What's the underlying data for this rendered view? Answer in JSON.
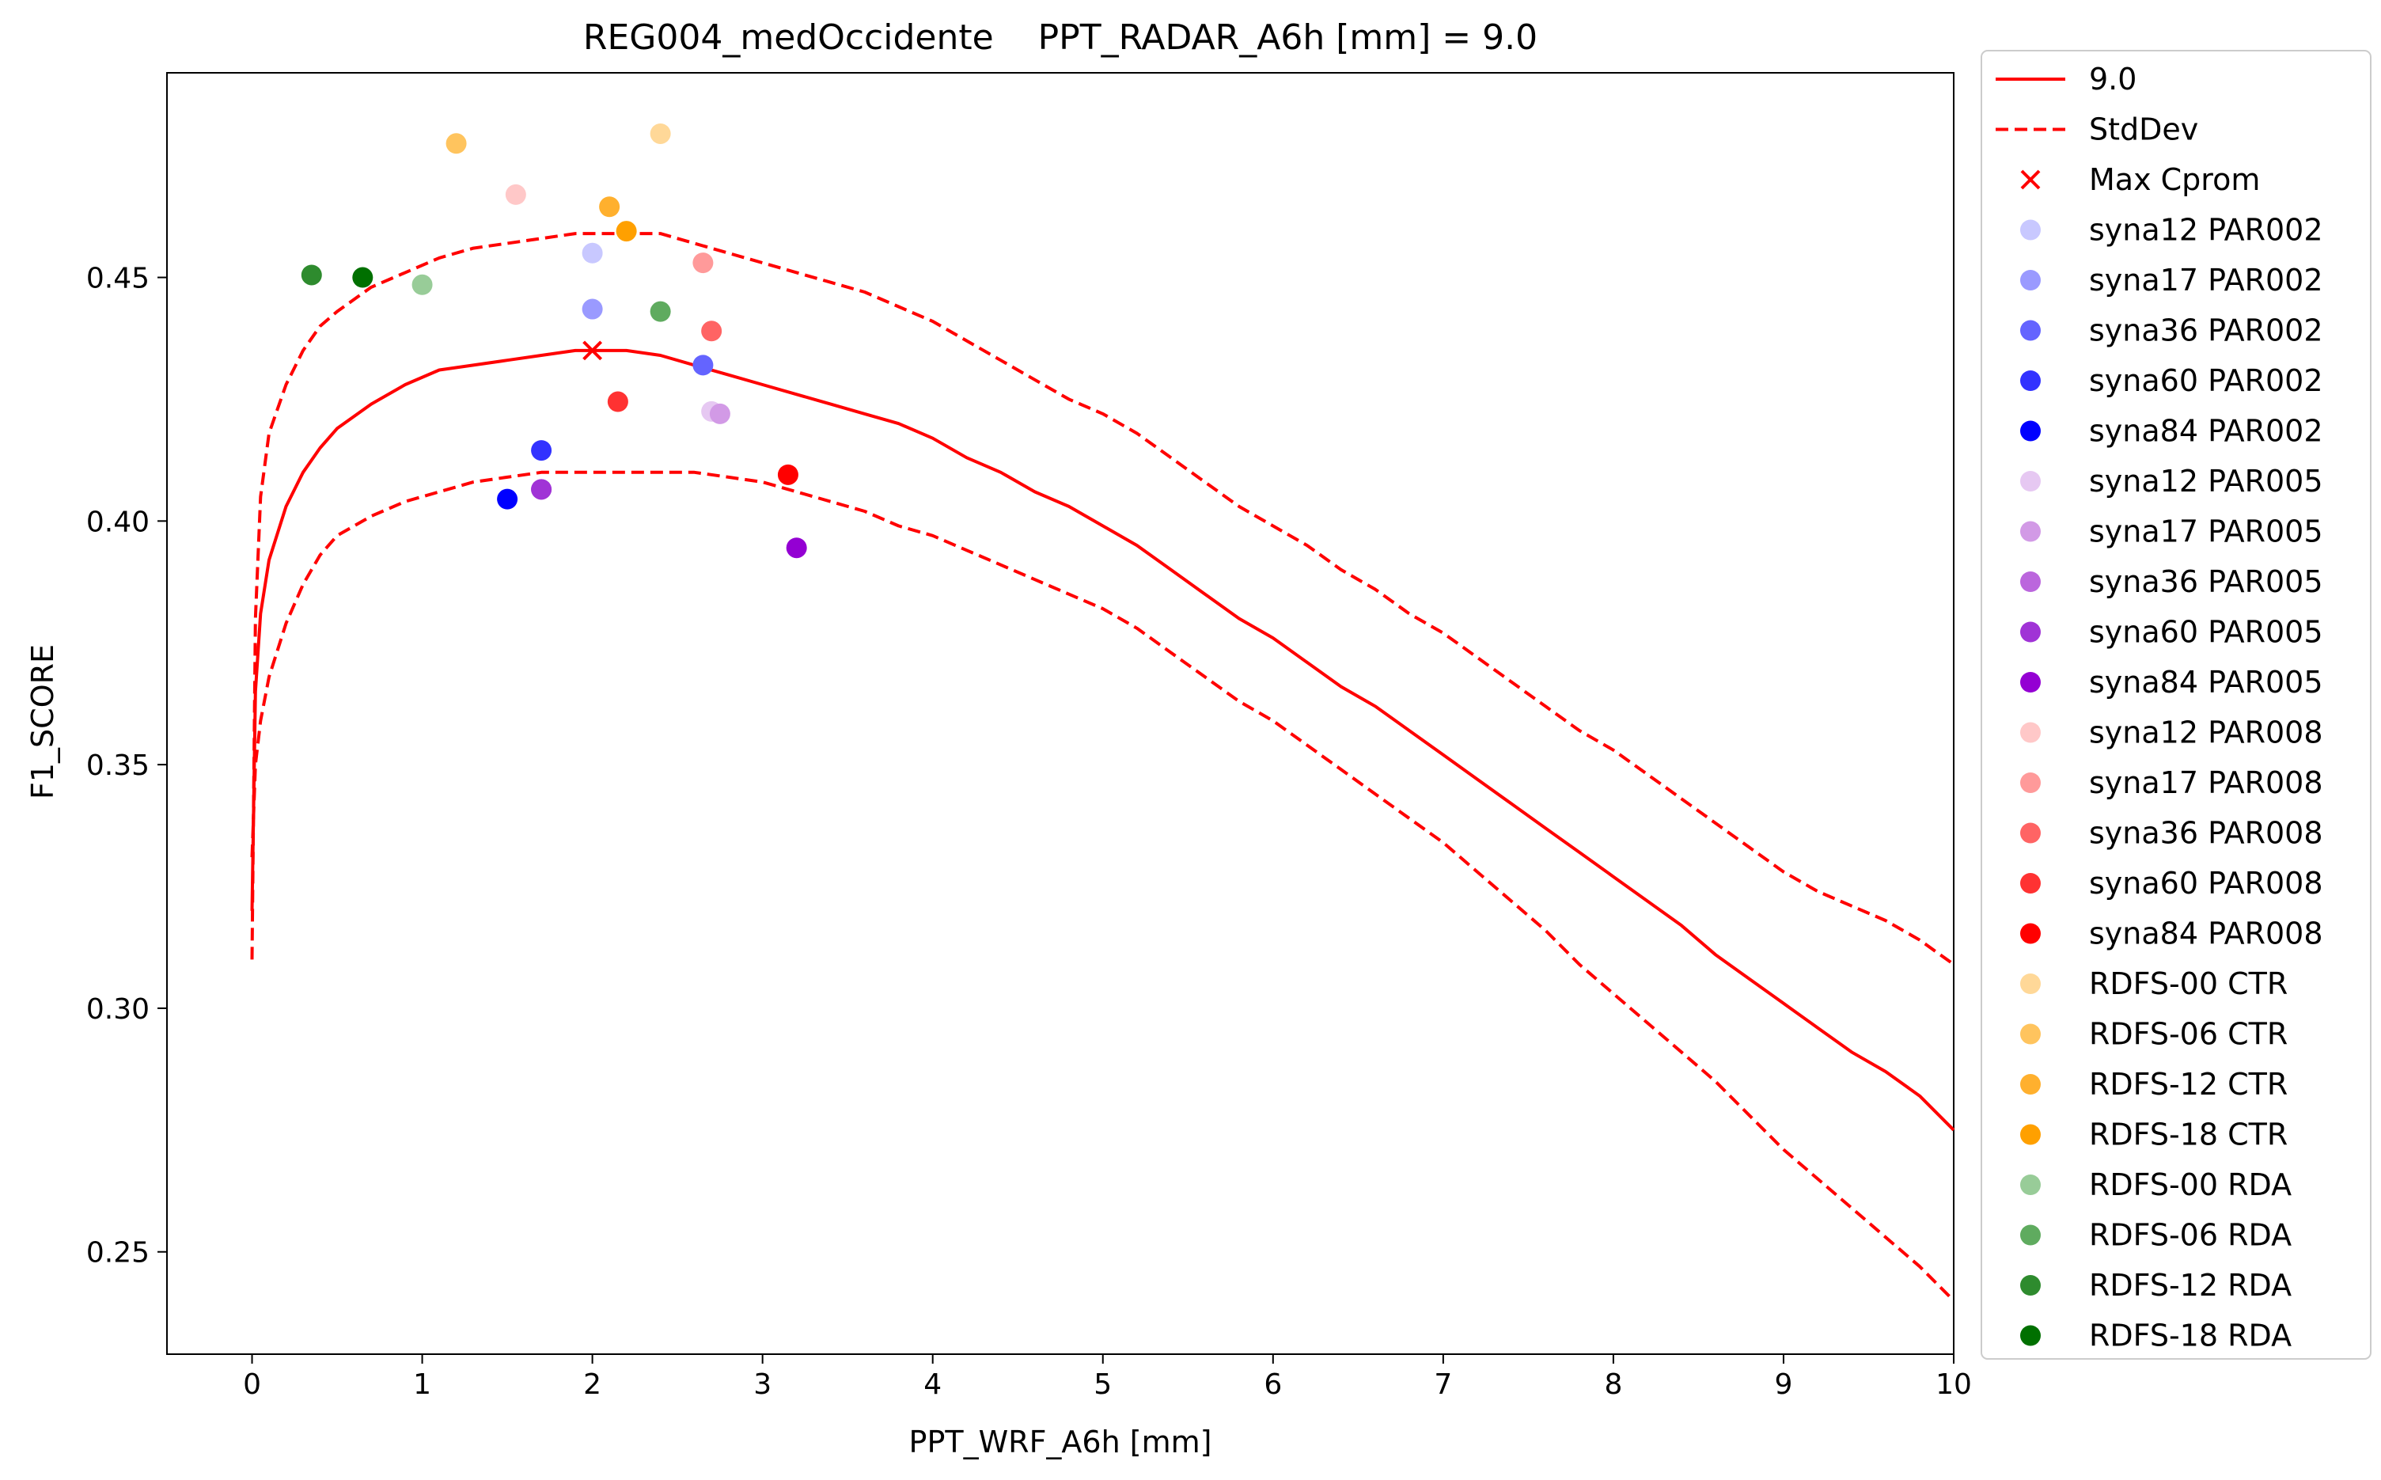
{
  "chart_data": {
    "type": "scatter",
    "title": "REG004_medOccidente    PPT_RADAR_A6h [mm] = 9.0",
    "xlabel": "PPT_WRF_A6h [mm]",
    "ylabel": "F1_SCORE",
    "xlim": [
      -0.5,
      10
    ],
    "ylim": [
      0.229,
      0.492
    ],
    "xticks": [
      0,
      1,
      2,
      3,
      4,
      5,
      6,
      7,
      8,
      9,
      10
    ],
    "yticks": [
      0.25,
      0.3,
      0.35,
      0.4,
      0.45
    ],
    "xtick_labels": [
      "0",
      "1",
      "2",
      "3",
      "4",
      "5",
      "6",
      "7",
      "8",
      "9",
      "10"
    ],
    "ytick_labels": [
      "0.25",
      "0.30",
      "0.35",
      "0.40",
      "0.45"
    ],
    "grid": false,
    "legend_position": "outside-right",
    "lines": [
      {
        "name": "9.0",
        "style": "solid",
        "color": "#ff0000",
        "points": [
          [
            0.0,
            0.32
          ],
          [
            0.02,
            0.365
          ],
          [
            0.05,
            0.381
          ],
          [
            0.1,
            0.392
          ],
          [
            0.2,
            0.403
          ],
          [
            0.3,
            0.41
          ],
          [
            0.4,
            0.415
          ],
          [
            0.5,
            0.419
          ],
          [
            0.7,
            0.424
          ],
          [
            0.9,
            0.428
          ],
          [
            1.1,
            0.431
          ],
          [
            1.3,
            0.432
          ],
          [
            1.5,
            0.433
          ],
          [
            1.7,
            0.434
          ],
          [
            1.9,
            0.435
          ],
          [
            2.0,
            0.435
          ],
          [
            2.2,
            0.435
          ],
          [
            2.4,
            0.434
          ],
          [
            2.6,
            0.432
          ],
          [
            2.8,
            0.43
          ],
          [
            3.0,
            0.428
          ],
          [
            3.2,
            0.426
          ],
          [
            3.4,
            0.424
          ],
          [
            3.6,
            0.422
          ],
          [
            3.8,
            0.42
          ],
          [
            4.0,
            0.417
          ],
          [
            4.2,
            0.413
          ],
          [
            4.4,
            0.41
          ],
          [
            4.6,
            0.406
          ],
          [
            4.8,
            0.403
          ],
          [
            5.0,
            0.399
          ],
          [
            5.2,
            0.395
          ],
          [
            5.4,
            0.39
          ],
          [
            5.6,
            0.385
          ],
          [
            5.8,
            0.38
          ],
          [
            6.0,
            0.376
          ],
          [
            6.2,
            0.371
          ],
          [
            6.4,
            0.366
          ],
          [
            6.6,
            0.362
          ],
          [
            6.8,
            0.357
          ],
          [
            7.0,
            0.352
          ],
          [
            7.2,
            0.347
          ],
          [
            7.4,
            0.342
          ],
          [
            7.6,
            0.337
          ],
          [
            7.8,
            0.332
          ],
          [
            8.0,
            0.327
          ],
          [
            8.2,
            0.322
          ],
          [
            8.4,
            0.317
          ],
          [
            8.6,
            0.311
          ],
          [
            8.8,
            0.306
          ],
          [
            9.0,
            0.301
          ],
          [
            9.2,
            0.296
          ],
          [
            9.4,
            0.291
          ],
          [
            9.6,
            0.287
          ],
          [
            9.8,
            0.282
          ],
          [
            10.0,
            0.275
          ]
        ]
      },
      {
        "name": "StdDev",
        "style": "dashed",
        "color": "#ff0000",
        "points": [
          [
            0.0,
            0.31
          ],
          [
            0.02,
            0.38
          ],
          [
            0.05,
            0.405
          ],
          [
            0.1,
            0.418
          ],
          [
            0.2,
            0.428
          ],
          [
            0.3,
            0.435
          ],
          [
            0.4,
            0.44
          ],
          [
            0.5,
            0.443
          ],
          [
            0.7,
            0.448
          ],
          [
            0.9,
            0.451
          ],
          [
            1.1,
            0.454
          ],
          [
            1.3,
            0.456
          ],
          [
            1.5,
            0.457
          ],
          [
            1.7,
            0.458
          ],
          [
            1.9,
            0.459
          ],
          [
            2.0,
            0.459
          ],
          [
            2.2,
            0.459
          ],
          [
            2.4,
            0.459
          ],
          [
            2.6,
            0.457
          ],
          [
            2.8,
            0.455
          ],
          [
            3.0,
            0.453
          ],
          [
            3.2,
            0.451
          ],
          [
            3.4,
            0.449
          ],
          [
            3.6,
            0.447
          ],
          [
            3.8,
            0.444
          ],
          [
            4.0,
            0.441
          ],
          [
            4.2,
            0.437
          ],
          [
            4.4,
            0.433
          ],
          [
            4.6,
            0.429
          ],
          [
            4.8,
            0.425
          ],
          [
            5.0,
            0.422
          ],
          [
            5.2,
            0.418
          ],
          [
            5.4,
            0.413
          ],
          [
            5.6,
            0.408
          ],
          [
            5.8,
            0.403
          ],
          [
            6.0,
            0.399
          ],
          [
            6.2,
            0.395
          ],
          [
            6.4,
            0.39
          ],
          [
            6.6,
            0.386
          ],
          [
            6.8,
            0.381
          ],
          [
            7.0,
            0.377
          ],
          [
            7.2,
            0.372
          ],
          [
            7.4,
            0.367
          ],
          [
            7.6,
            0.362
          ],
          [
            7.8,
            0.357
          ],
          [
            8.0,
            0.353
          ],
          [
            8.2,
            0.348
          ],
          [
            8.4,
            0.343
          ],
          [
            8.6,
            0.338
          ],
          [
            8.8,
            0.333
          ],
          [
            9.0,
            0.328
          ],
          [
            9.2,
            0.324
          ],
          [
            9.4,
            0.321
          ],
          [
            9.6,
            0.318
          ],
          [
            9.8,
            0.314
          ],
          [
            10.0,
            0.309
          ]
        ]
      },
      {
        "name": "",
        "style": "dashed",
        "color": "#ff0000",
        "points": [
          [
            0.0,
            0.331
          ],
          [
            0.02,
            0.35
          ],
          [
            0.05,
            0.359
          ],
          [
            0.1,
            0.368
          ],
          [
            0.2,
            0.379
          ],
          [
            0.3,
            0.387
          ],
          [
            0.4,
            0.393
          ],
          [
            0.5,
            0.397
          ],
          [
            0.7,
            0.401
          ],
          [
            0.9,
            0.404
          ],
          [
            1.1,
            0.406
          ],
          [
            1.3,
            0.408
          ],
          [
            1.5,
            0.409
          ],
          [
            1.7,
            0.41
          ],
          [
            1.9,
            0.41
          ],
          [
            2.0,
            0.41
          ],
          [
            2.2,
            0.41
          ],
          [
            2.4,
            0.41
          ],
          [
            2.6,
            0.41
          ],
          [
            2.8,
            0.409
          ],
          [
            3.0,
            0.408
          ],
          [
            3.2,
            0.406
          ],
          [
            3.4,
            0.404
          ],
          [
            3.6,
            0.402
          ],
          [
            3.8,
            0.399
          ],
          [
            4.0,
            0.397
          ],
          [
            4.2,
            0.394
          ],
          [
            4.4,
            0.391
          ],
          [
            4.6,
            0.388
          ],
          [
            4.8,
            0.385
          ],
          [
            5.0,
            0.382
          ],
          [
            5.2,
            0.378
          ],
          [
            5.4,
            0.373
          ],
          [
            5.6,
            0.368
          ],
          [
            5.8,
            0.363
          ],
          [
            6.0,
            0.359
          ],
          [
            6.2,
            0.354
          ],
          [
            6.4,
            0.349
          ],
          [
            6.6,
            0.344
          ],
          [
            6.8,
            0.339
          ],
          [
            7.0,
            0.334
          ],
          [
            7.2,
            0.328
          ],
          [
            7.4,
            0.322
          ],
          [
            7.6,
            0.316
          ],
          [
            7.8,
            0.309
          ],
          [
            8.0,
            0.303
          ],
          [
            8.2,
            0.297
          ],
          [
            8.4,
            0.291
          ],
          [
            8.6,
            0.285
          ],
          [
            8.8,
            0.278
          ],
          [
            9.0,
            0.271
          ],
          [
            9.2,
            0.265
          ],
          [
            9.4,
            0.259
          ],
          [
            9.6,
            0.253
          ],
          [
            9.8,
            0.247
          ],
          [
            10.0,
            0.24
          ]
        ]
      }
    ],
    "max_marker": {
      "name": "Max Cprom",
      "marker": "x",
      "color": "#ff0000",
      "x": 2.0,
      "y": 0.435
    },
    "series": [
      {
        "name": "syna12 PAR002",
        "color": "#c8c8ff",
        "x": 2.0,
        "y": 0.455
      },
      {
        "name": "syna17 PAR002",
        "color": "#9a9aff",
        "x": 2.0,
        "y": 0.4435
      },
      {
        "name": "syna36 PAR002",
        "color": "#6464ff",
        "x": 2.65,
        "y": 0.432
      },
      {
        "name": "syna60 PAR002",
        "color": "#3232ff",
        "x": 1.7,
        "y": 0.4145
      },
      {
        "name": "syna84 PAR002",
        "color": "#0000ff",
        "x": 1.5,
        "y": 0.4045
      },
      {
        "name": "syna12 PAR005",
        "color": "#e6c8f2",
        "x": 2.7,
        "y": 0.4225
      },
      {
        "name": "syna17 PAR005",
        "color": "#d29ae6",
        "x": 2.75,
        "y": 0.422
      },
      {
        "name": "syna36 PAR005",
        "color": "#bb66dd",
        "x": 1.7,
        "y": 0.4065
      },
      {
        "name": "syna60 PAR005",
        "color": "#a033d6",
        "x": 1.7,
        "y": 0.4065
      },
      {
        "name": "syna84 PAR005",
        "color": "#9400d3",
        "x": 3.2,
        "y": 0.3945
      },
      {
        "name": "syna12 PAR008",
        "color": "#ffc8c8",
        "x": 1.55,
        "y": 0.467
      },
      {
        "name": "syna17 PAR008",
        "color": "#ff9a9a",
        "x": 2.65,
        "y": 0.453
      },
      {
        "name": "syna36 PAR008",
        "color": "#ff6464",
        "x": 2.7,
        "y": 0.439
      },
      {
        "name": "syna60 PAR008",
        "color": "#ff3232",
        "x": 2.15,
        "y": 0.4245
      },
      {
        "name": "syna84 PAR008",
        "color": "#ff0000",
        "x": 3.15,
        "y": 0.4095
      },
      {
        "name": "RDFS-00 CTR",
        "color": "#ffd898",
        "x": 2.4,
        "y": 0.4795
      },
      {
        "name": "RDFS-06 CTR",
        "color": "#ffc45e",
        "x": 1.2,
        "y": 0.4775
      },
      {
        "name": "RDFS-12 CTR",
        "color": "#ffb02e",
        "x": 2.1,
        "y": 0.4645
      },
      {
        "name": "RDFS-18 CTR",
        "color": "#ffa000",
        "x": 2.2,
        "y": 0.4595
      },
      {
        "name": "RDFS-00 RDA",
        "color": "#98cc98",
        "x": 1.0,
        "y": 0.4485
      },
      {
        "name": "RDFS-06 RDA",
        "color": "#5fab5f",
        "x": 2.4,
        "y": 0.443
      },
      {
        "name": "RDFS-12 RDA",
        "color": "#2e8b2e",
        "x": 0.35,
        "y": 0.4505
      },
      {
        "name": "RDFS-18 RDA",
        "color": "#007000",
        "x": 0.65,
        "y": 0.45
      }
    ]
  }
}
